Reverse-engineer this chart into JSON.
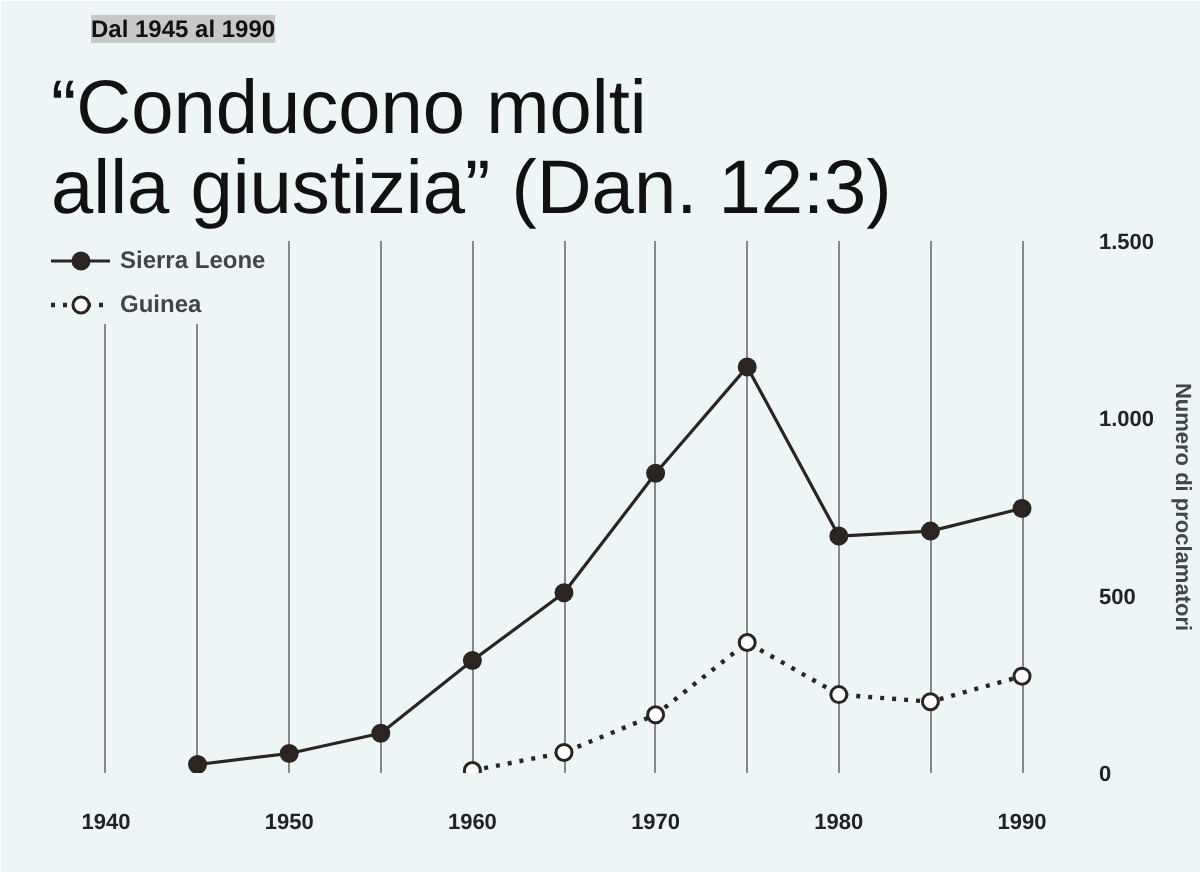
{
  "chart_data": {
    "type": "line",
    "title": "“Conducono molti alla giustizia” (Dan. 12:3)",
    "subtitle": "Dal 1945 al 1990",
    "ylabel": "Numero di proclamatori",
    "x": [
      1945,
      1950,
      1955,
      1960,
      1965,
      1970,
      1975,
      1980,
      1985,
      1990
    ],
    "series": [
      {
        "name": "Sierra Leone",
        "color": "#2b2522",
        "line_style": "solid",
        "values": [
          24,
          55,
          112,
          317,
          508,
          845,
          1145,
          668,
          682,
          746
        ]
      },
      {
        "name": "Guinea",
        "color": "#2b2522",
        "line_style": "dotted",
        "values": [
          null,
          null,
          null,
          7,
          58,
          164,
          368,
          221,
          201,
          273
        ]
      }
    ],
    "marker": "circle",
    "legend": "top left",
    "grid": "x",
    "xlim": [
      1937,
      1993
    ],
    "ylim": [
      0,
      1500
    ],
    "xticks": [
      1940,
      {
        "value": 1945,
        "label": null
      },
      1950,
      {
        "value": 1955,
        "label": null
      },
      1960,
      {
        "value": 1965,
        "label": null
      },
      1970,
      {
        "value": 1975,
        "label": null
      },
      1980,
      {
        "value": 1985,
        "label": null
      },
      1990
    ],
    "yticks": [
      0,
      {
        "value": 500,
        "label": "500"
      },
      {
        "value": 1000,
        "label": "1.000"
      },
      {
        "value": 1500,
        "label": "1.500"
      }
    ]
  }
}
